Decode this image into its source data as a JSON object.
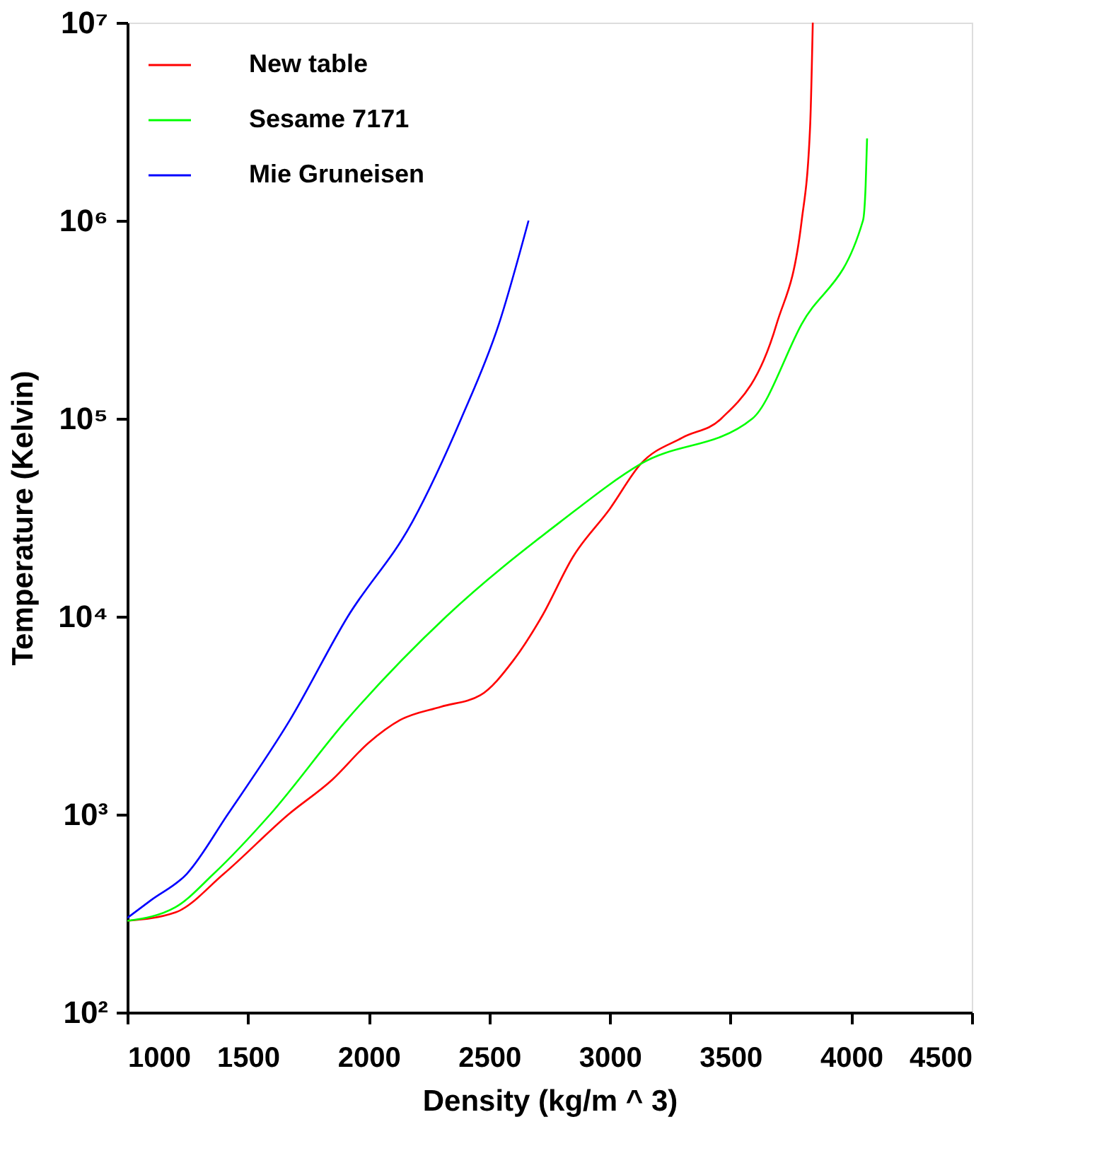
{
  "chart_data": {
    "type": "line",
    "xlabel": "Density (kg/m ^ 3)",
    "ylabel": "Temperature (Kelvin)",
    "log": "y",
    "xlim": [
      1000,
      4500
    ],
    "ylim": [
      100,
      10000000
    ],
    "xticks": [
      1000,
      1500,
      2000,
      2500,
      3000,
      3500,
      4000,
      4500
    ],
    "yticks": [
      {
        "value": 100,
        "label": "10²"
      },
      {
        "value": 1000,
        "label": "10³"
      },
      {
        "value": 10000,
        "label": "10⁴"
      },
      {
        "value": 100000,
        "label": "10⁵"
      },
      {
        "value": 1000000,
        "label": "10⁶"
      },
      {
        "value": 10000000,
        "label": "10⁷"
      }
    ],
    "grid": false,
    "legend": "top left",
    "marker": "none",
    "line_style": "solid",
    "series": [
      {
        "name": "New table",
        "color": "#ff0000",
        "x": [
          1000,
          1200,
          1399,
          1668,
          1850,
          2000,
          2131,
          2300,
          2463,
          2600,
          2718,
          2847,
          3000,
          3128,
          3300,
          3462,
          3691,
          3795,
          3830,
          3841
        ],
        "values": [
          290,
          320,
          500,
          1000,
          1500,
          2300,
          3000,
          3500,
          4000,
          6000,
          10000,
          20000,
          35000,
          59000,
          80000,
          100000,
          300000,
          1000000,
          3000000,
          10000000
        ]
      },
      {
        "name": "Sesame 7171",
        "color": "#00ff00",
        "x": [
          1000,
          1200,
          1357,
          1592,
          1909,
          2322,
          2794,
          3128,
          3591,
          3795,
          4049,
          4060,
          4066
        ],
        "values": [
          290,
          340,
          500,
          1000,
          3000,
          10000,
          30000,
          59000,
          100000,
          300000,
          1000000,
          1500000,
          2600000
        ]
      },
      {
        "name": "Mie Gruneisen",
        "color": "#0000ff",
        "x": [
          1000,
          1100,
          1246,
          1416,
          1674,
          1914,
          2181,
          2384,
          2540,
          2663
        ],
        "values": [
          300,
          370,
          500,
          1000,
          3000,
          10000,
          30000,
          100000,
          300000,
          1000000
        ]
      }
    ]
  }
}
